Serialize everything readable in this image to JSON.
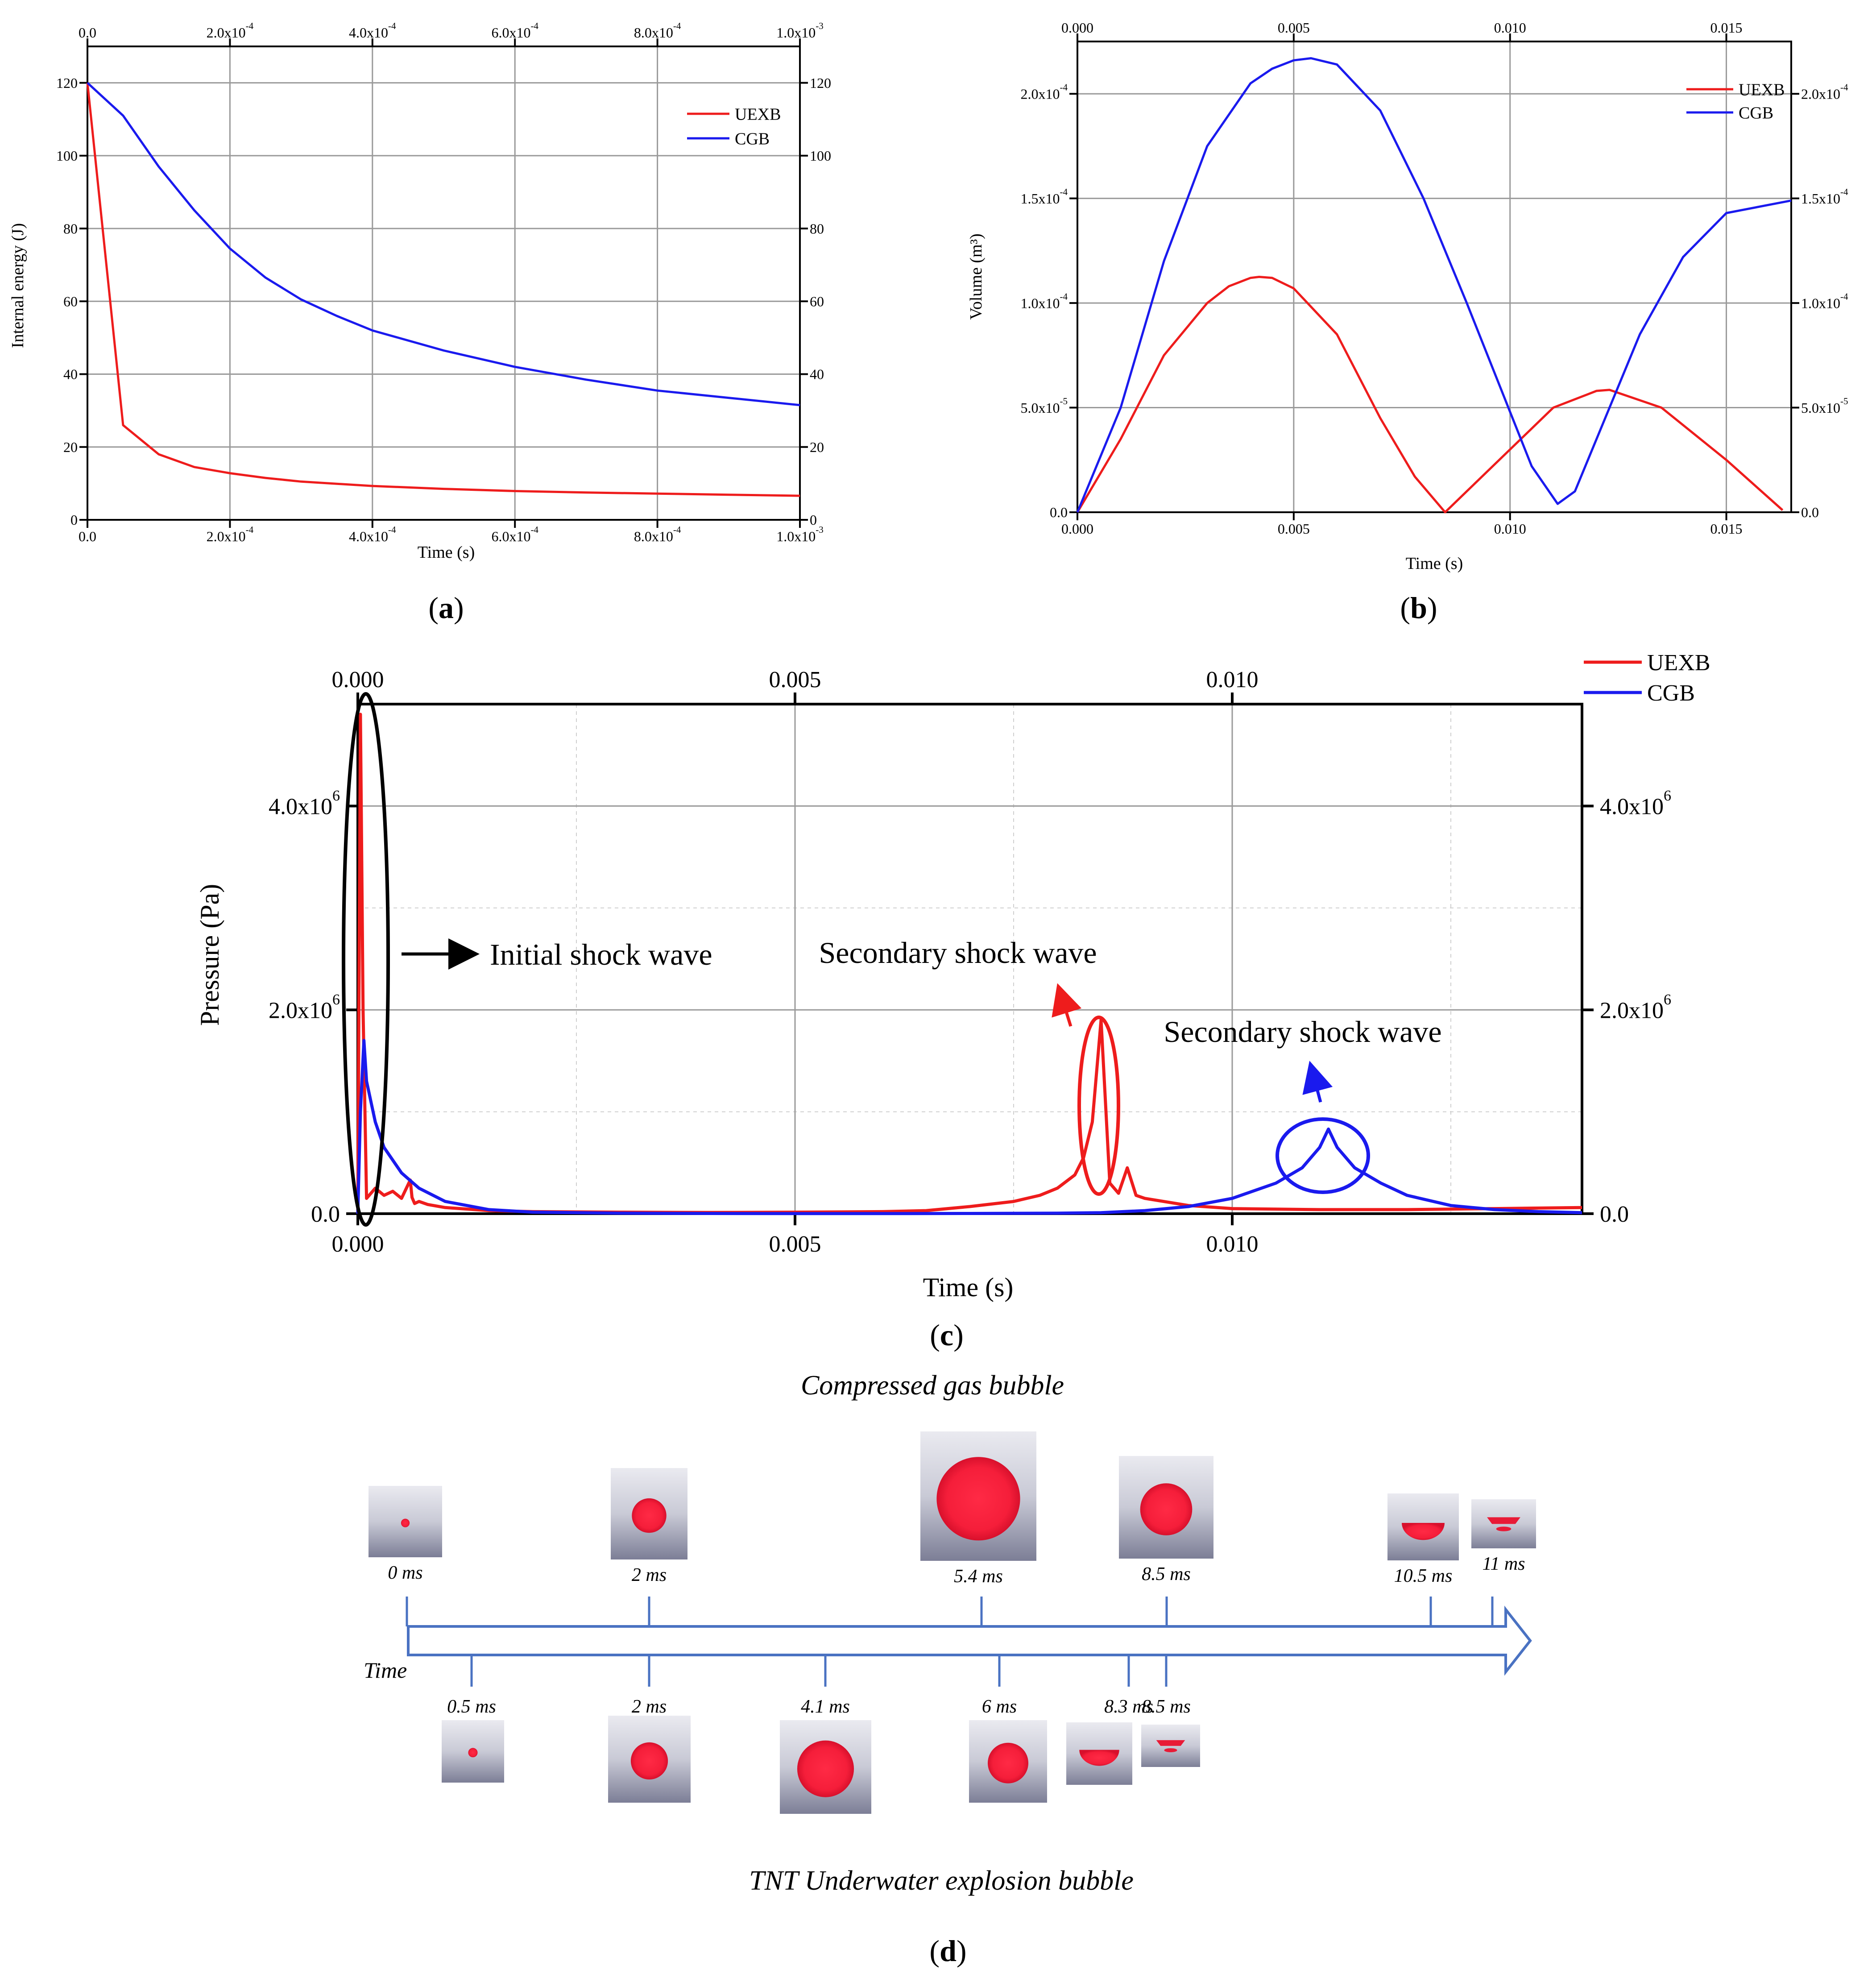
{
  "colors": {
    "uexb": "#ee1c1c",
    "cgb": "#1a1aee",
    "grid": "#9a9a9a",
    "arrow": "#4a72c2"
  },
  "chart_data": [
    {
      "id": "a",
      "type": "line",
      "label": "a",
      "xlabel": "Time (s)",
      "ylabel": "Internal energy (J)",
      "xlim": [
        0,
        0.001
      ],
      "ylim": [
        0,
        130
      ],
      "grid": true,
      "legend_position": "top-right",
      "x_ticks": [
        0,
        0.0002,
        0.0004,
        0.0006,
        0.0008,
        0.001
      ],
      "x_tick_labels": [
        "0.0",
        "2.0x10^-4",
        "4.0x10^-4",
        "6.0x10^-4",
        "8.0x10^-4",
        "1.0x10^-3"
      ],
      "y_ticks": [
        0,
        20,
        40,
        60,
        80,
        100,
        120
      ],
      "y_tick_labels": [
        "0",
        "20",
        "40",
        "60",
        "80",
        "100",
        "120"
      ],
      "series": [
        {
          "name": "UEXB",
          "color": "#ee1c1c",
          "x": [
            0,
            5e-05,
            0.0001,
            0.00015,
            0.0002,
            0.00025,
            0.0003,
            0.0004,
            0.0005,
            0.0006,
            0.0007,
            0.0008,
            0.0009,
            0.001
          ],
          "y": [
            120,
            26,
            18,
            14.5,
            12.8,
            11.5,
            10.5,
            9.3,
            8.5,
            7.9,
            7.5,
            7.2,
            6.9,
            6.6
          ]
        },
        {
          "name": "CGB",
          "color": "#1a1aee",
          "x": [
            0,
            5e-05,
            0.0001,
            0.00015,
            0.0002,
            0.00025,
            0.0003,
            0.00035,
            0.0004,
            0.0005,
            0.0006,
            0.0007,
            0.0008,
            0.0009,
            0.001
          ],
          "y": [
            120,
            111,
            97,
            85,
            74.5,
            66.5,
            60.5,
            56,
            52,
            46.5,
            42,
            38.5,
            35.5,
            33.5,
            31.5
          ]
        }
      ]
    },
    {
      "id": "b",
      "type": "line",
      "label": "b",
      "xlabel": "Time (s)",
      "ylabel": "Volume (m³)",
      "xlim": [
        0,
        0.0165
      ],
      "ylim": [
        0,
        0.000225
      ],
      "grid": true,
      "legend_position": "top-right",
      "x_ticks": [
        0,
        0.005,
        0.01,
        0.015
      ],
      "x_tick_labels": [
        "0.000",
        "0.005",
        "0.010",
        "0.015"
      ],
      "y_ticks": [
        0,
        5e-05,
        0.0001,
        0.00015,
        0.0002
      ],
      "y_tick_labels": [
        "0.0",
        "5.0x10^-5",
        "1.0x10^-4",
        "1.5x10^-4",
        "2.0x10^-4"
      ],
      "series": [
        {
          "name": "UEXB",
          "color": "#ee1c1c",
          "x": [
            0,
            0.001,
            0.002,
            0.003,
            0.0035,
            0.004,
            0.0042,
            0.0045,
            0.005,
            0.006,
            0.007,
            0.0078,
            0.0085,
            0.009,
            0.01,
            0.011,
            0.012,
            0.0123,
            0.0135,
            0.015,
            0.0163
          ],
          "y": [
            0,
            3.5e-05,
            7.5e-05,
            0.0001,
            0.000108,
            0.000112,
            0.0001125,
            0.000112,
            0.000107,
            8.5e-05,
            4.5e-05,
            1.7e-05,
            0,
            1e-05,
            3e-05,
            5e-05,
            5.8e-05,
            5.85e-05,
            5e-05,
            2.5e-05,
            1e-06
          ]
        },
        {
          "name": "CGB",
          "color": "#1a1aee",
          "x": [
            0,
            0.001,
            0.002,
            0.003,
            0.004,
            0.0045,
            0.005,
            0.0054,
            0.006,
            0.007,
            0.008,
            0.009,
            0.01,
            0.0105,
            0.0111,
            0.0115,
            0.012,
            0.013,
            0.014,
            0.015,
            0.0165
          ],
          "y": [
            0,
            5e-05,
            0.00012,
            0.000175,
            0.000205,
            0.000212,
            0.000216,
            0.000217,
            0.000214,
            0.000192,
            0.00015,
            0.0001,
            4.8e-05,
            2.2e-05,
            4e-06,
            1e-05,
            3.5e-05,
            8.5e-05,
            0.000122,
            0.000143,
            0.000149
          ]
        }
      ]
    },
    {
      "id": "c",
      "type": "line",
      "label": "c",
      "xlabel": "Time (s)",
      "ylabel": "Pressure (Pa)",
      "xlim": [
        0,
        0.014
      ],
      "ylim": [
        0,
        5000000
      ],
      "grid": true,
      "legend_position": "top-right",
      "x_ticks": [
        0,
        0.005,
        0.01
      ],
      "x_tick_labels": [
        "0.000",
        "0.005",
        "0.010"
      ],
      "y_ticks": [
        0,
        2000000,
        4000000
      ],
      "y_tick_labels": [
        "0.0",
        "2.0x10^6",
        "4.0x10^6"
      ],
      "annotations": [
        "Initial shock wave",
        "Secondary shock wave",
        "Secondary shock wave"
      ],
      "series": [
        {
          "name": "UEXB",
          "color": "#ee1c1c",
          "x": [
            0,
            3e-05,
            6e-05,
            0.0001,
            0.00015,
            0.0002,
            0.0003,
            0.0004,
            0.0005,
            0.0006,
            0.00062,
            0.00065,
            0.0007,
            0.0008,
            0.001,
            0.0015,
            0.002,
            0.003,
            0.004,
            0.005,
            0.006,
            0.0065,
            0.007,
            0.0075,
            0.0078,
            0.008,
            0.0082,
            0.0083,
            0.0084,
            0.0085,
            0.0086,
            0.0087,
            0.0088,
            0.0089,
            0.009,
            0.0095,
            0.01,
            0.011,
            0.012,
            0.013,
            0.014
          ],
          "y": [
            0,
            4900000,
            2000000,
            150000,
            200000,
            250000,
            180000,
            220000,
            150000,
            330000,
            160000,
            100000,
            120000,
            90000,
            60000,
            30000,
            20000,
            15000,
            12000,
            15000,
            20000,
            30000,
            70000,
            120000,
            180000,
            250000,
            380000,
            550000,
            900000,
            1900000,
            300000,
            200000,
            450000,
            180000,
            150000,
            80000,
            50000,
            40000,
            40000,
            50000,
            60000
          ]
        },
        {
          "name": "CGB",
          "color": "#1a1aee",
          "x": [
            0,
            3e-05,
            7e-05,
            0.0001,
            0.0002,
            0.0003,
            0.0005,
            0.0007,
            0.001,
            0.0015,
            0.002,
            0.003,
            0.004,
            0.005,
            0.006,
            0.007,
            0.008,
            0.0085,
            0.009,
            0.0095,
            0.01,
            0.0105,
            0.0108,
            0.011,
            0.0111,
            0.0112,
            0.0114,
            0.0117,
            0.012,
            0.0125,
            0.013,
            0.0135,
            0.014
          ],
          "y": [
            0,
            1000000,
            1700000,
            1300000,
            900000,
            650000,
            400000,
            250000,
            120000,
            40000,
            15000,
            5000,
            2000,
            1000,
            1000,
            2000,
            5000,
            10000,
            30000,
            70000,
            150000,
            300000,
            450000,
            650000,
            830000,
            650000,
            450000,
            300000,
            180000,
            80000,
            40000,
            20000,
            10000
          ]
        }
      ]
    }
  ],
  "panel_d": {
    "label": "d",
    "top_title": "Compressed gas bubble",
    "bottom_title": "TNT Underwater explosion bubble",
    "axis_label": "Time",
    "top_frames": [
      {
        "time": "0 ms",
        "shape": "sphere",
        "size": 0.12
      },
      {
        "time": "2 ms",
        "shape": "sphere",
        "size": 0.45
      },
      {
        "time": "5.4 ms",
        "shape": "sphere",
        "size": 0.72
      },
      {
        "time": "8.5 ms",
        "shape": "sphere",
        "size": 0.55
      },
      {
        "time": "10.5 ms",
        "shape": "half",
        "size": 0.4
      },
      {
        "time": "11 ms",
        "shape": "flat",
        "size": 0.3
      }
    ],
    "bottom_frames": [
      {
        "time": "0.5 ms",
        "shape": "sphere",
        "size": 0.15
      },
      {
        "time": "2 ms",
        "shape": "sphere",
        "size": 0.45
      },
      {
        "time": "4.1 ms",
        "shape": "sphere",
        "size": 0.62
      },
      {
        "time": "6 ms",
        "shape": "sphere",
        "size": 0.52
      },
      {
        "time": "8.3 ms",
        "shape": "half",
        "size": 0.38
      },
      {
        "time": "8.5 ms",
        "shape": "flat",
        "size": 0.3
      }
    ]
  }
}
